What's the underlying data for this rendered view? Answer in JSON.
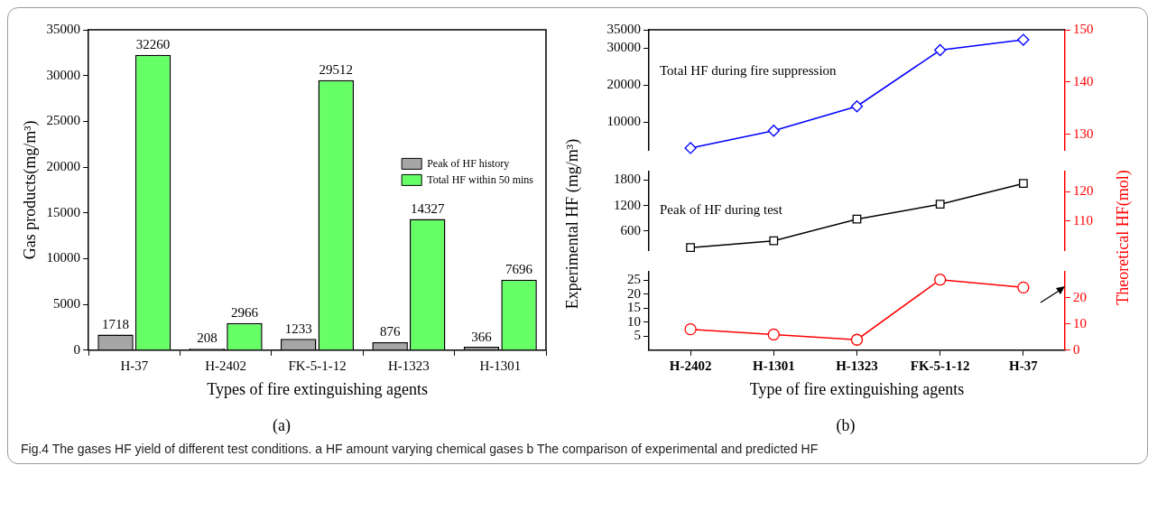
{
  "chart_data": [
    {
      "type": "bar",
      "subtitle": "(a)",
      "xlabel": "Types of fire extinguishing agents",
      "ylabel": "Gas products(mg/m³)",
      "categories": [
        "H-37",
        "H-2402",
        "FK-5-1-12",
        "H-1323",
        "H-1301"
      ],
      "series": [
        {
          "name": "Peak of HF history",
          "color": "#a6a6a6",
          "values": [
            1718,
            208,
            1233,
            876,
            366
          ]
        },
        {
          "name": "Total HF within 50 mins",
          "color": "#66ff66",
          "values": [
            32260,
            2966,
            29512,
            14327,
            7696
          ]
        }
      ],
      "ylim": [
        0,
        35000
      ],
      "yticks": [
        0,
        5000,
        10000,
        15000,
        20000,
        25000,
        30000,
        35000
      ],
      "data_labels": true,
      "legend": "right"
    },
    {
      "type": "line",
      "categories": [
        null,
        null,
        null,
        null,
        null
      ],
      "series": [
        {
          "name": "Total HF during fire suppression",
          "color": "#0000ff",
          "marker": "diamond",
          "values": [
            3000,
            7700,
            14300,
            29500,
            32300
          ]
        }
      ],
      "ylim": [
        2500,
        35000
      ],
      "yticks": [
        10000,
        20000,
        30000,
        35000
      ],
      "y2lim": [
        127,
        150
      ],
      "y2ticks": [
        130,
        140,
        150
      ],
      "tick_labels": "y",
      "legend": false
    },
    {
      "type": "line",
      "ylabel": "Experimental HF (mg/m³)",
      "y2label": "Theoretical HF(mol)",
      "categories": [
        null,
        null,
        null,
        null,
        null
      ],
      "series": [
        {
          "name": "Peak of HF during test",
          "color": "#000000",
          "marker": "square",
          "values": [
            210,
            370,
            880,
            1230,
            1720
          ]
        }
      ],
      "ylim": [
        150,
        2000
      ],
      "yticks": [
        600,
        1200,
        1800
      ],
      "y2lim": [
        100,
        127
      ],
      "y2ticks": [
        110,
        120
      ],
      "tick_labels": "y",
      "legend": false
    },
    {
      "type": "line",
      "subtitle": "(b)",
      "xlabel": "Type of fire extinguishing agents",
      "categories": [
        "H-2402",
        "H-1301",
        "H-1323",
        "FK-5-1-12",
        "H-37"
      ],
      "series": [
        {
          "color": "#ff0000",
          "marker": "circle",
          "axis": "y2",
          "values": [
            8,
            6,
            4,
            27,
            24
          ]
        }
      ],
      "ylim": [
        0,
        28
      ],
      "yticks": [
        5,
        10,
        15,
        20,
        25
      ],
      "y2lim": [
        0,
        30
      ],
      "y2ticks": [
        0,
        10,
        20
      ],
      "legend": false,
      "annotations": [
        "Fig.4  The gases HF yield of different test conditions. a HF amount varying chemical gases b The comparison of experimental and predicted HF"
      ]
    }
  ]
}
